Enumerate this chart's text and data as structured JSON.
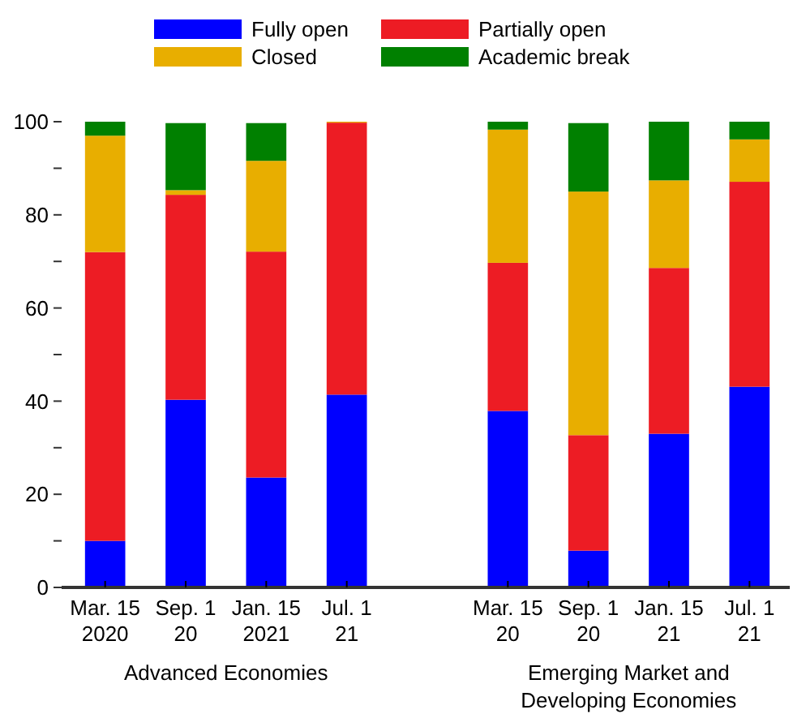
{
  "chart_data": {
    "type": "bar",
    "stacked": true,
    "legend": "top",
    "categories": [
      "Mar. 15\n2020",
      "Sep. 1\n20",
      "Jan. 15\n2021",
      "Jul. 1\n21",
      null,
      "Mar. 15\n20",
      "Sep. 1\n20",
      "Jan. 15\n21",
      "Jul. 1\n21"
    ],
    "series": [
      {
        "name": "Fully open",
        "color": "#0000ff",
        "values": [
          10,
          40.3,
          23.6,
          41.4,
          null,
          37.9,
          7.9,
          33,
          43.1
        ]
      },
      {
        "name": "Partially open",
        "color": "#ed1c24",
        "values": [
          62,
          44,
          48.5,
          58.4,
          null,
          31.8,
          24.8,
          35.6,
          44
        ]
      },
      {
        "name": "Closed",
        "color": "#e8ae00",
        "values": [
          25,
          1,
          19.5,
          0.2,
          null,
          28.6,
          52.3,
          18.8,
          9.1
        ]
      },
      {
        "name": "Academic break",
        "color": "#008000",
        "values": [
          3,
          14.4,
          8.1,
          0,
          null,
          1.7,
          14.7,
          12.6,
          3.8
        ]
      }
    ],
    "ylim": [
      0,
      100
    ],
    "yticks": [
      0,
      {
        "value": 10,
        "label": null
      },
      20,
      {
        "value": 30,
        "label": null
      },
      40,
      {
        "value": 50,
        "label": null
      },
      60,
      {
        "value": 70,
        "label": null
      },
      80,
      {
        "value": 90,
        "label": null
      },
      100
    ],
    "annotations": [
      "Advanced Economies",
      "Emerging Market and\nDeveloping Economies"
    ]
  }
}
